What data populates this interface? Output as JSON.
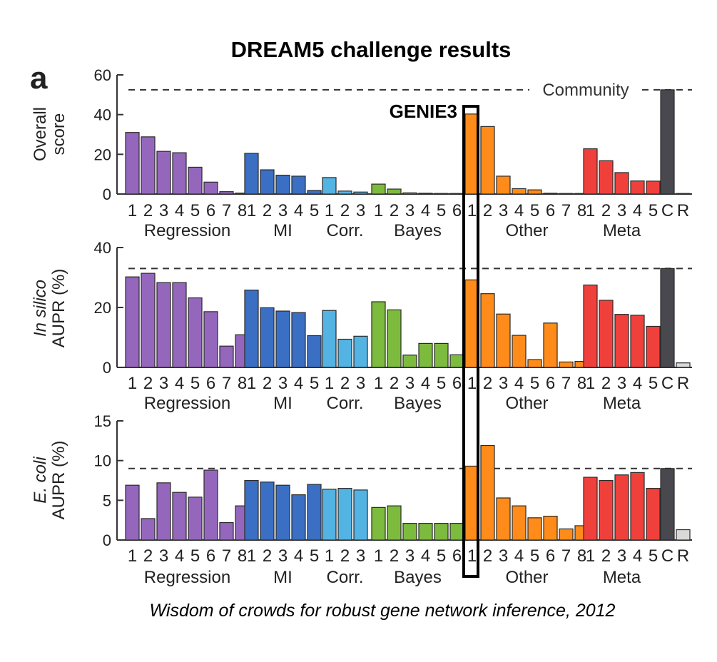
{
  "title": "DREAM5 challenge results",
  "panel_letter": "a",
  "caption": "Wisdom of crowds for robust gene network inference, 2012",
  "annotations": {
    "community_label": "Community",
    "genie_label": "GENIE3"
  },
  "colors": {
    "Regression": "#9467bd",
    "MI": "#3a6fc4",
    "Corr.": "#53b3e3",
    "Bayes": "#7dbb3e",
    "Other": "#ff8c1a",
    "Meta": "#f0403c",
    "community": "#48484e",
    "random": "#d9d9d9"
  },
  "chart_data": [
    {
      "type": "bar",
      "ylabel_lines": [
        {
          "text": "Overall",
          "italic": false
        },
        {
          "text": "score",
          "italic": false
        }
      ],
      "ylim": [
        0,
        60
      ],
      "yticks": [
        0,
        20,
        40,
        60
      ],
      "community_line": 52.5,
      "show_community_label": true,
      "groups": [
        {
          "name": "Regression",
          "labels": [
            "1",
            "2",
            "3",
            "4",
            "5",
            "6",
            "7",
            "8"
          ],
          "values": [
            31,
            28.8,
            21.5,
            20.8,
            13.5,
            6,
            1.2,
            0.5
          ]
        },
        {
          "name": "MI",
          "labels": [
            "1",
            "2",
            "3",
            "4",
            "5"
          ],
          "values": [
            20.5,
            12.2,
            9.5,
            9,
            1.8
          ]
        },
        {
          "name": "Corr.",
          "labels": [
            "1",
            "2",
            "3"
          ],
          "values": [
            8.3,
            1.5,
            1
          ]
        },
        {
          "name": "Bayes",
          "labels": [
            "1",
            "2",
            "3",
            "4",
            "5",
            "6"
          ],
          "values": [
            5,
            2.5,
            0.6,
            0.4,
            0.3,
            0.2
          ]
        },
        {
          "name": "Other",
          "labels": [
            "1",
            "2",
            "3",
            "4",
            "5",
            "6",
            "7",
            "8"
          ],
          "values": [
            40.3,
            34,
            9,
            2.7,
            2.1,
            0.4,
            0.2,
            0.2
          ]
        },
        {
          "name": "Meta",
          "labels": [
            "1",
            "2",
            "3",
            "4",
            "5"
          ],
          "values": [
            22.8,
            16.8,
            10.8,
            6.6,
            6.5
          ]
        }
      ],
      "community": {
        "name": "C",
        "value": 52.5
      },
      "random": {
        "name": "R",
        "value": 0
      }
    },
    {
      "type": "bar",
      "ylabel_lines": [
        {
          "text": "In silico",
          "italic": true
        },
        {
          "text": "AUPR (%)",
          "italic": false
        }
      ],
      "ylim": [
        0,
        40
      ],
      "yticks": [
        0,
        20,
        40
      ],
      "community_line": 33,
      "show_community_label": false,
      "groups": [
        {
          "name": "Regression",
          "labels": [
            "1",
            "2",
            "3",
            "4",
            "5",
            "6",
            "7",
            "8"
          ],
          "values": [
            30.2,
            31.4,
            28.3,
            28.3,
            23.2,
            18.6,
            7.1,
            10.9
          ]
        },
        {
          "name": "MI",
          "labels": [
            "1",
            "2",
            "3",
            "4",
            "5"
          ],
          "values": [
            25.8,
            19.9,
            18.8,
            18.3,
            10.6
          ]
        },
        {
          "name": "Corr.",
          "labels": [
            "1",
            "2",
            "3"
          ],
          "values": [
            19,
            9.4,
            10.4
          ]
        },
        {
          "name": "Bayes",
          "labels": [
            "1",
            "2",
            "3",
            "4",
            "5",
            "6"
          ],
          "values": [
            21.9,
            19.2,
            4.1,
            8,
            8,
            4.2
          ]
        },
        {
          "name": "Other",
          "labels": [
            "1",
            "2",
            "3",
            "4",
            "5",
            "6",
            "7",
            "8"
          ],
          "values": [
            29.2,
            24.6,
            17.8,
            10.7,
            2.6,
            14.8,
            1.8,
            2
          ]
        },
        {
          "name": "Meta",
          "labels": [
            "1",
            "2",
            "3",
            "4",
            "5"
          ],
          "values": [
            27.5,
            22.4,
            17.7,
            17.4,
            13.7
          ]
        }
      ],
      "community": {
        "name": "C",
        "value": 33
      },
      "random": {
        "name": "R",
        "value": 1.5
      }
    },
    {
      "type": "bar",
      "ylabel_lines": [
        {
          "text": "E. coli",
          "italic": true
        },
        {
          "text": "AUPR (%)",
          "italic": false
        }
      ],
      "ylim": [
        0,
        15
      ],
      "yticks": [
        0,
        5,
        10,
        15
      ],
      "community_line": 9,
      "show_community_label": false,
      "groups": [
        {
          "name": "Regression",
          "labels": [
            "1",
            "2",
            "3",
            "4",
            "5",
            "6",
            "7",
            "8"
          ],
          "values": [
            6.9,
            2.7,
            7.2,
            6,
            5.4,
            8.8,
            2.2,
            4.3
          ]
        },
        {
          "name": "MI",
          "labels": [
            "1",
            "2",
            "3",
            "4",
            "5"
          ],
          "values": [
            7.5,
            7.3,
            6.9,
            5.7,
            7
          ]
        },
        {
          "name": "Corr.",
          "labels": [
            "1",
            "2",
            "3"
          ],
          "values": [
            6.4,
            6.5,
            6.3
          ]
        },
        {
          "name": "Bayes",
          "labels": [
            "1",
            "2",
            "3",
            "4",
            "5",
            "6"
          ],
          "values": [
            4.1,
            4.3,
            2.1,
            2.1,
            2.1,
            2.1
          ]
        },
        {
          "name": "Other",
          "labels": [
            "1",
            "2",
            "3",
            "4",
            "5",
            "6",
            "7",
            "8"
          ],
          "values": [
            9.3,
            11.9,
            5.3,
            4.3,
            2.8,
            3,
            1.4,
            1.8
          ]
        },
        {
          "name": "Meta",
          "labels": [
            "1",
            "2",
            "3",
            "4",
            "5"
          ],
          "values": [
            7.9,
            7.5,
            8.2,
            8.5,
            6.5
          ]
        }
      ],
      "community": {
        "name": "C",
        "value": 9
      },
      "random": {
        "name": "R",
        "value": 1.3
      }
    }
  ]
}
